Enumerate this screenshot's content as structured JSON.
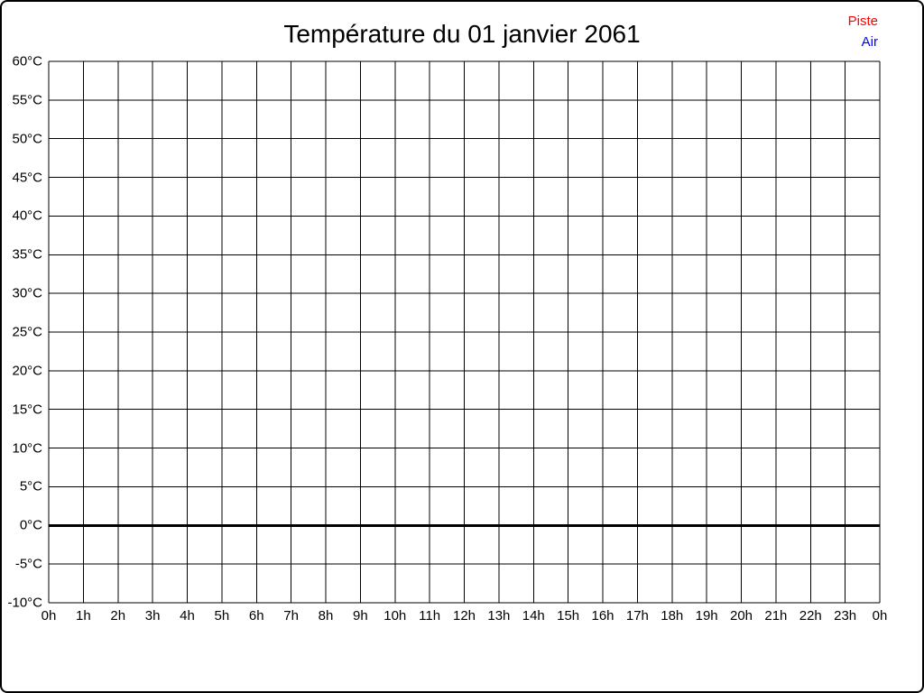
{
  "chart_data": {
    "type": "line",
    "title": "Température du 01 janvier 2061",
    "xlabel": "",
    "ylabel": "",
    "x_tick_labels": [
      "0h",
      "1h",
      "2h",
      "3h",
      "4h",
      "5h",
      "6h",
      "7h",
      "8h",
      "9h",
      "10h",
      "11h",
      "12h",
      "13h",
      "14h",
      "15h",
      "16h",
      "17h",
      "18h",
      "19h",
      "20h",
      "21h",
      "22h",
      "23h",
      "0h"
    ],
    "y_tick_labels": [
      "60°C",
      "55°C",
      "50°C",
      "45°C",
      "40°C",
      "35°C",
      "30°C",
      "25°C",
      "20°C",
      "15°C",
      "10°C",
      "5°C",
      "0°C",
      "-5°C",
      "-10°C"
    ],
    "ylim": [
      -10,
      60
    ],
    "y_step": 5,
    "zero_line_value": 0,
    "grid": true,
    "legend_position": "top-right",
    "series": [
      {
        "name": "Piste",
        "color": "#ff0000",
        "values": []
      },
      {
        "name": "Air",
        "color": "#0000ff",
        "values": []
      }
    ]
  },
  "colors": {
    "background": "#ffffff",
    "frame_border": "#000000",
    "grid_line": "#000000",
    "title_text": "#000000",
    "axis_text": "#000000"
  }
}
